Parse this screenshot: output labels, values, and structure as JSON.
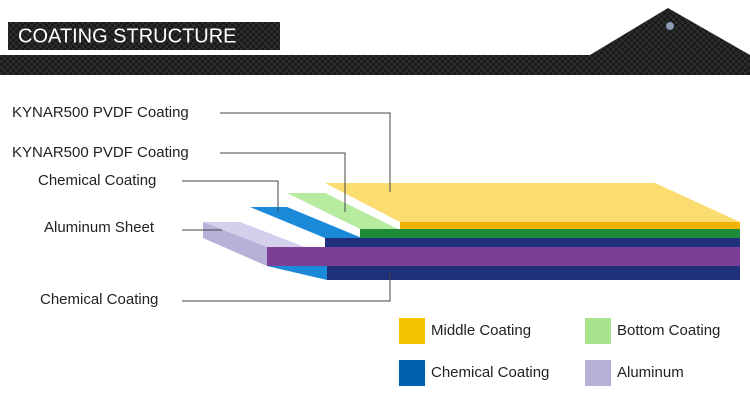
{
  "header": {
    "title": "COATING STRUCTURE"
  },
  "callouts": [
    "KYNAR500 PVDF Coating",
    "KYNAR500 PVDF Coating",
    "Chemical Coating",
    "Aluminum Sheet",
    "Chemical Coating"
  ],
  "legend": [
    {
      "label": "Middle Coating",
      "color": "#f5c400"
    },
    {
      "label": "Bottom Coating",
      "color": "#a8e38e"
    },
    {
      "label": "Chemical Coating",
      "color": "#0060b0"
    },
    {
      "label": "Aluminum",
      "color": "#b8b0d6"
    }
  ]
}
